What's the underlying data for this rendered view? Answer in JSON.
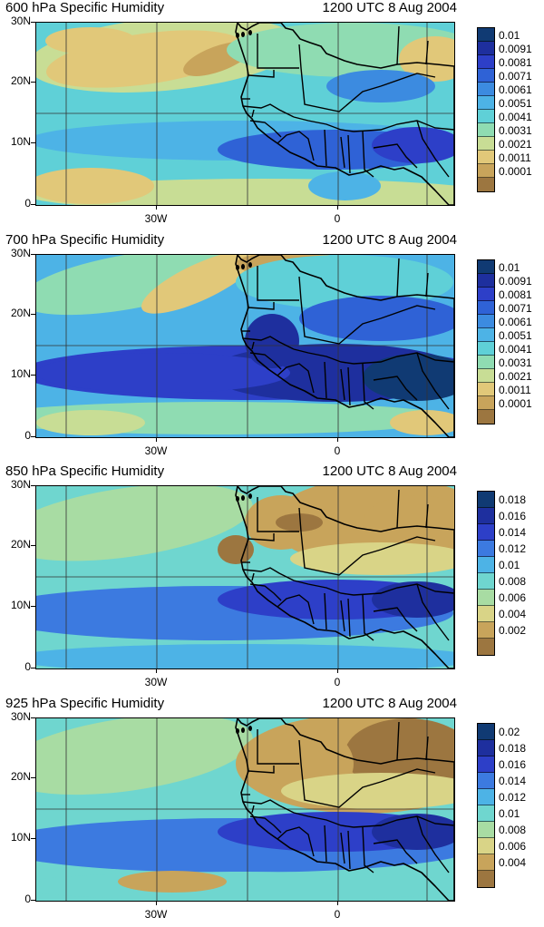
{
  "valid_time": "1200 UTC 8 Aug 2004",
  "axes": {
    "lat_labels": [
      "30N",
      "20N",
      "10N",
      "0"
    ],
    "lon_labels": [
      "30W",
      "0"
    ]
  },
  "panels": [
    {
      "id": "600",
      "title": "600 hPa Specific Humidity",
      "levels": [
        "0.01",
        "0.0091",
        "0.0081",
        "0.0071",
        "0.0061",
        "0.0051",
        "0.0041",
        "0.0031",
        "0.0021",
        "0.0011",
        "0.0001"
      ],
      "colors": [
        "#103a73",
        "#1e2f9e",
        "#2d3fc8",
        "#2f62d6",
        "#3c8be0",
        "#4db3e6",
        "#5fd0d7",
        "#8fdcb2",
        "#c8dd95",
        "#e1c879",
        "#c8a45b",
        "#9c7640"
      ],
      "pattern": "mid600"
    },
    {
      "id": "700",
      "title": "700 hPa Specific Humidity",
      "levels": [
        "0.01",
        "0.0091",
        "0.0081",
        "0.0071",
        "0.0061",
        "0.0051",
        "0.0041",
        "0.0031",
        "0.0021",
        "0.0011",
        "0.0001"
      ],
      "colors": [
        "#103a73",
        "#1e2f9e",
        "#2d3fc8",
        "#2f62d6",
        "#3c8be0",
        "#4db3e6",
        "#5fd0d7",
        "#8fdcb2",
        "#c8dd95",
        "#e1c879",
        "#c8a45b",
        "#9c7640"
      ],
      "pattern": "mid700"
    },
    {
      "id": "850",
      "title": "850 hPa Specific Humidity",
      "levels": [
        "0.018",
        "0.016",
        "0.014",
        "0.012",
        "0.01",
        "0.008",
        "0.006",
        "0.004",
        "0.002"
      ],
      "colors": [
        "#103a73",
        "#1e2f9e",
        "#2d3fc8",
        "#3c7ae0",
        "#4db3e6",
        "#6fd6cf",
        "#a8dca3",
        "#d9d487",
        "#c8a45b",
        "#9c7640"
      ],
      "pattern": "low850"
    },
    {
      "id": "925",
      "title": "925 hPa Specific Humidity",
      "levels": [
        "0.02",
        "0.018",
        "0.016",
        "0.014",
        "0.012",
        "0.01",
        "0.008",
        "0.006",
        "0.004"
      ],
      "colors": [
        "#103a73",
        "#1e2f9e",
        "#2d3fc8",
        "#3c7ae0",
        "#4db3e6",
        "#6fd6cf",
        "#a8dca3",
        "#d9d487",
        "#c8a45b",
        "#9c7640"
      ],
      "pattern": "low925"
    }
  ]
}
